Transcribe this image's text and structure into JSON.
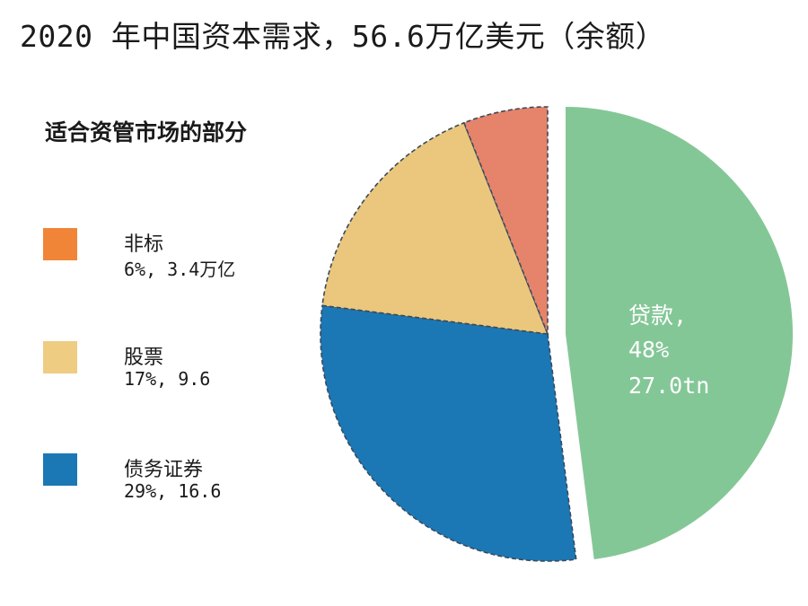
{
  "title": "2020 年中国资本需求，56.6万亿美元（余额）",
  "subtitle": "适合资管市场的部分",
  "chart_data": {
    "type": "pie",
    "title": "2020 年中国资本需求，56.6万亿美元（余额）",
    "subtitle": "适合资管市场的部分",
    "slices": [
      {
        "label": "贷款",
        "percent": 48,
        "value": 27.0,
        "value_text": "27.0tn",
        "color": "#84C797",
        "exploded": true
      },
      {
        "label": "债务证券",
        "percent": 29,
        "value": 16.6,
        "value_text": "29%, 16.6",
        "color": "#1B78B4",
        "exploded": false
      },
      {
        "label": "股票",
        "percent": 17,
        "value": 9.6,
        "value_text": "17%, 9.6",
        "color": "#EAC77C",
        "exploded": false
      },
      {
        "label": "非标",
        "percent": 6,
        "value": 3.4,
        "value_text": "6%, 3.4万亿",
        "color": "#E6836B",
        "exploded": false
      }
    ],
    "legend": [
      {
        "label": "非标",
        "value": "6%, 3.4万亿",
        "color": "#F08538"
      },
      {
        "label": "股票",
        "value": "17%, 9.6",
        "color": "#EECC82"
      },
      {
        "label": "债务证券",
        "value": "29%, 16.6",
        "color": "#1B78B4"
      }
    ],
    "slice_label": {
      "line1": "贷款,",
      "line2": "48%",
      "line3": "27.0tn"
    },
    "legend_placement": "left"
  }
}
